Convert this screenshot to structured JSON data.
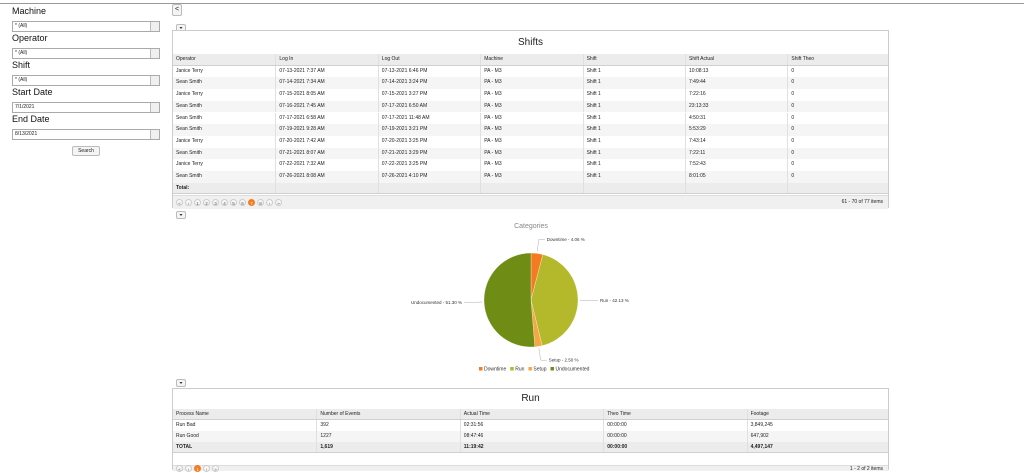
{
  "sidebar": {
    "filters": [
      {
        "label": "Machine",
        "value": "* (All)"
      },
      {
        "label": "Operator",
        "value": "* (All)"
      },
      {
        "label": "Shift",
        "value": "* (All)"
      },
      {
        "label": "Start Date",
        "value": "7/1/2021"
      },
      {
        "label": "End Date",
        "value": "8/13/2021"
      }
    ],
    "search": "Search",
    "collapse": "<"
  },
  "shifts": {
    "title": "Shifts",
    "columns": [
      "Operator",
      "Log In",
      "Log Out",
      "Machine",
      "Shift",
      "Shift Actual",
      "Shift Theo"
    ],
    "rows": [
      [
        "Janice Terry",
        "07-13-2021 7:37 AM",
        "07-13-2021 6:46 PM",
        "PA - M3",
        "Shift 1",
        "10:08:13",
        "0"
      ],
      [
        "Sean Smith",
        "07-14-2021 7:34 AM",
        "07-14-2021 3:24 PM",
        "PA - M3",
        "Shift 1",
        "7:49:44",
        "0"
      ],
      [
        "Janice Terry",
        "07-15-2021 8:05 AM",
        "07-15-2021 3:27 PM",
        "PA - M3",
        "Shift 1",
        "7:22:16",
        "0"
      ],
      [
        "Sean Smith",
        "07-16-2021 7:45 AM",
        "07-17-2021 6:50 AM",
        "PA - M3",
        "Shift 1",
        "23:13:33",
        "0"
      ],
      [
        "Sean Smith",
        "07-17-2021 6:58 AM",
        "07-17-2021 11:48 AM",
        "PA - M3",
        "Shift 1",
        "4:50:31",
        "0"
      ],
      [
        "Sean Smith",
        "07-19-2021 9:28 AM",
        "07-19-2021 3:21 PM",
        "PA - M3",
        "Shift 1",
        "5:53:29",
        "0"
      ],
      [
        "Janice Terry",
        "07-20-2021 7:42 AM",
        "07-20-2021 3:25 PM",
        "PA - M3",
        "Shift 1",
        "7:43:14",
        "0"
      ],
      [
        "Sean Smith",
        "07-21-2021 8:07 AM",
        "07-21-2021 3:29 PM",
        "PA - M3",
        "Shift 1",
        "7:22:11",
        "0"
      ],
      [
        "Janice Terry",
        "07-22-2021 7:32 AM",
        "07-22-2021 3:25 PM",
        "PA - M3",
        "Shift 1",
        "7:52:43",
        "0"
      ],
      [
        "Sean Smith",
        "07-26-2021 8:08 AM",
        "07-26-2021 4:10 PM",
        "PA - M3",
        "Shift 1",
        "8:01:05",
        "0"
      ]
    ],
    "total_label": "Total:",
    "pager": {
      "pages": [
        "1",
        "2",
        "3",
        "4",
        "5",
        "6",
        "7",
        "8"
      ],
      "active_page": 7,
      "info": "61 - 70 of 77 items"
    }
  },
  "chart_data": {
    "type": "pie",
    "title": "Categories",
    "categories": [
      "Downtime",
      "Run",
      "Setup",
      "Undocumented"
    ],
    "values": [
      4.06,
      42.13,
      2.5,
      51.3
    ],
    "value_labels": [
      "Downtime - 4.06 %",
      "Run - 42.13 %",
      "Setup - 2.50 %",
      "Undocumented - 51.30 %"
    ],
    "colors": [
      "#f47b20",
      "#b3b92a",
      "#f5a742",
      "#6f8c14"
    ],
    "legend": "bottom"
  },
  "run": {
    "title": "Run",
    "columns": [
      "Process Name",
      "Number of Events",
      "Actual Time",
      "Theo Time",
      "Footage"
    ],
    "rows": [
      [
        "Run Bad",
        "392",
        "02:31:56",
        "00:00:00",
        "3,849,245"
      ],
      [
        "Run Good",
        "1227",
        "08:47:46",
        "00:00:00",
        "647,902"
      ]
    ],
    "total": [
      "TOTAL",
      "1,619",
      "11:19:42",
      "00:00:00",
      "4,497,147"
    ],
    "pager": {
      "pages": [
        "1"
      ],
      "active_page": 1,
      "info": "1 - 2 of 2 items"
    }
  }
}
